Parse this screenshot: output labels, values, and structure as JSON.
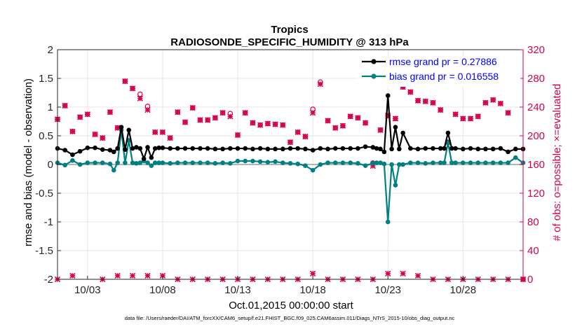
{
  "chart_data": {
    "type": "line",
    "title": "Tropics",
    "subtitle": "RADIOSONDE_SPECIFIC_HUMIDITY @ 313 hPa",
    "xlabel": "Oct.01,2015 00:00:00 start",
    "ylabel_left": "rmse and bias (model - observation)",
    "ylabel_right": "# of obs: o=possible; ×=evaluated",
    "footer": "data file: /Users/raeder/DAI/ATM_forcXX/CAM6_setup/f.e21.FHIST_BGC.f09_025.CAM6assim.011/Diags_NTrS_2015-10/obs_diag_output.nc",
    "x_range": [
      1,
      32
    ],
    "ylim_left": [
      -2,
      2
    ],
    "ylim_right": [
      0,
      320
    ],
    "xticks": [
      {
        "value": 3,
        "label": "10/03"
      },
      {
        "value": 8,
        "label": "10/08"
      },
      {
        "value": 13,
        "label": "10/13"
      },
      {
        "value": 18,
        "label": "10/18"
      },
      {
        "value": 23,
        "label": "10/23"
      },
      {
        "value": 28,
        "label": "10/28"
      }
    ],
    "yticks_left": [
      {
        "value": 2,
        "label": "2"
      },
      {
        "value": 1.5,
        "label": "1.5"
      },
      {
        "value": 1,
        "label": "1"
      },
      {
        "value": 0.5,
        "label": "0.5"
      },
      {
        "value": 0,
        "label": "0"
      },
      {
        "value": -0.5,
        "label": "-0.5"
      },
      {
        "value": -1,
        "label": "-1"
      },
      {
        "value": -1.5,
        "label": "-1.5"
      },
      {
        "value": -2,
        "label": "-2"
      }
    ],
    "yticks_right": [
      {
        "value": 320,
        "label": "320"
      },
      {
        "value": 280,
        "label": "280"
      },
      {
        "value": 240,
        "label": "240"
      },
      {
        "value": 200,
        "label": "200"
      },
      {
        "value": 160,
        "label": "160"
      },
      {
        "value": 120,
        "label": "120"
      },
      {
        "value": 80,
        "label": "80"
      },
      {
        "value": 40,
        "label": "40"
      },
      {
        "value": 0,
        "label": "0"
      }
    ],
    "grid": true,
    "legend_position": "top-right",
    "colors": {
      "rmse": "#000000",
      "bias": "#008080",
      "obs": "#d6004f",
      "zero_line": "#b4b4b4",
      "grid": "#e6e6e6",
      "legend_text": "#0000ff"
    },
    "series": [
      {
        "name": "rmse grand pr = 0.27886",
        "axis": "left",
        "color": "#000000",
        "marker": "circle",
        "x": [
          1.0,
          1.5,
          2.0,
          2.5,
          3.0,
          3.5,
          4.0,
          4.5,
          4.75,
          5.0,
          5.25,
          5.5,
          5.75,
          6.0,
          6.25,
          6.5,
          6.75,
          7.0,
          7.25,
          7.5,
          7.75,
          8.0,
          8.5,
          9.0,
          9.5,
          10.0,
          10.5,
          11.0,
          11.5,
          12.0,
          12.5,
          13.0,
          13.5,
          14.0,
          14.5,
          15.0,
          15.5,
          16.0,
          16.5,
          17.0,
          17.5,
          18.0,
          18.5,
          19.0,
          19.5,
          20.0,
          20.5,
          21.0,
          21.5,
          22.0,
          22.25,
          22.5,
          22.75,
          23.0,
          23.25,
          23.5,
          23.75,
          24.0,
          24.5,
          25.0,
          25.5,
          26.0,
          26.5,
          26.75,
          27.0,
          27.25,
          27.5,
          28.0,
          28.5,
          29.0,
          29.5,
          30.0,
          30.5,
          31.0,
          31.5,
          32.0
        ],
        "values": [
          0.28,
          0.25,
          0.17,
          0.23,
          0.29,
          0.29,
          0.26,
          0.25,
          0.22,
          0.28,
          0.65,
          0.26,
          0.6,
          0.28,
          0.3,
          0.28,
          0.1,
          0.3,
          0.12,
          0.28,
          0.29,
          0.29,
          0.28,
          0.28,
          0.28,
          0.28,
          0.28,
          0.28,
          0.27,
          0.27,
          0.28,
          0.28,
          0.28,
          0.27,
          0.28,
          0.27,
          0.27,
          0.27,
          0.28,
          0.28,
          0.27,
          0.25,
          0.28,
          0.27,
          0.28,
          0.28,
          0.28,
          0.28,
          0.31,
          0.3,
          0.28,
          0.27,
          0.22,
          1.2,
          0.27,
          0.65,
          0.27,
          0.55,
          0.28,
          0.27,
          0.28,
          0.28,
          0.28,
          0.28,
          0.55,
          0.28,
          0.28,
          0.27,
          0.28,
          0.27,
          0.27,
          0.27,
          0.28,
          0.22,
          0.27,
          0.27
        ]
      },
      {
        "name": "bias grand pr = 0.016558",
        "axis": "left",
        "color": "#008080",
        "marker": "circle",
        "x": [
          1.0,
          1.5,
          2.0,
          2.5,
          3.0,
          3.5,
          4.0,
          4.5,
          4.75,
          5.0,
          5.25,
          5.5,
          5.75,
          6.0,
          6.25,
          6.5,
          6.75,
          7.0,
          7.25,
          7.5,
          7.75,
          8.0,
          8.5,
          9.0,
          9.5,
          10.0,
          10.5,
          11.0,
          11.5,
          12.0,
          12.5,
          13.0,
          13.5,
          14.0,
          14.5,
          15.0,
          15.5,
          16.0,
          16.5,
          17.0,
          17.5,
          18.0,
          18.5,
          19.0,
          19.5,
          20.0,
          20.5,
          21.0,
          21.5,
          22.0,
          22.25,
          22.5,
          22.75,
          23.0,
          23.25,
          23.5,
          23.75,
          24.0,
          24.5,
          25.0,
          25.5,
          26.0,
          26.5,
          26.75,
          27.0,
          27.25,
          27.5,
          28.0,
          28.5,
          29.0,
          29.5,
          30.0,
          30.5,
          31.0,
          31.5,
          32.0
        ],
        "values": [
          0.03,
          -0.01,
          0.07,
          0.0,
          0.03,
          0.03,
          0.03,
          0.01,
          -0.1,
          0.03,
          0.6,
          0.03,
          0.42,
          0.03,
          0.02,
          0.03,
          0.06,
          0.03,
          -0.02,
          0.03,
          0.03,
          0.03,
          0.02,
          0.03,
          0.03,
          0.03,
          0.03,
          0.03,
          0.02,
          0.03,
          0.02,
          0.06,
          0.06,
          0.06,
          0.05,
          0.04,
          0.05,
          0.03,
          0.02,
          0.01,
          -0.02,
          -0.1,
          0.0,
          0.03,
          0.03,
          0.03,
          0.03,
          0.02,
          -0.02,
          0.02,
          0.03,
          0.03,
          0.01,
          -1.0,
          0.0,
          -0.36,
          0.0,
          0.0,
          0.03,
          0.03,
          0.02,
          0.03,
          0.03,
          0.03,
          0.38,
          0.03,
          0.03,
          0.03,
          0.03,
          0.03,
          0.03,
          0.03,
          0.03,
          0.03,
          0.12,
          0.03
        ]
      },
      {
        "name": "obs possible",
        "axis": "right",
        "color": "#d6004f",
        "marker": "o",
        "x": [
          1.0,
          1.5,
          2.0,
          2.5,
          3.0,
          3.5,
          4.0,
          4.5,
          5.0,
          5.5,
          6.0,
          6.5,
          7.0,
          7.5,
          8.0,
          8.5,
          9.0,
          9.5,
          10.0,
          10.5,
          11.0,
          11.5,
          12.0,
          12.5,
          13.0,
          13.5,
          14.0,
          14.5,
          15.0,
          15.5,
          16.0,
          16.5,
          17.0,
          17.5,
          18.0,
          18.5,
          19.0,
          19.5,
          20.0,
          20.5,
          21.0,
          21.5,
          22.0,
          22.5,
          23.0,
          23.5,
          24.0,
          24.5,
          25.0,
          25.5,
          26.0,
          26.5,
          27.0,
          27.5,
          28.0,
          28.5,
          29.0,
          29.5,
          30.0,
          30.5,
          31.0,
          31.5,
          32.0
        ],
        "values": [
          223,
          242,
          206,
          226,
          230,
          202,
          197,
          233,
          211,
          276,
          266,
          258,
          241,
          205,
          205,
          197,
          233,
          219,
          239,
          222,
          222,
          225,
          232,
          231,
          201,
          232,
          218,
          215,
          217,
          216,
          215,
          191,
          205,
          199,
          237,
          275,
          221,
          211,
          214,
          227,
          225,
          218,
          162,
          208,
          228,
          224,
          268,
          261,
          249,
          248,
          246,
          236,
          191,
          230,
          224,
          224,
          227,
          246,
          250,
          245,
          232,
          288,
          0
        ],
        "extra_x": [
          1,
          2,
          4,
          5,
          6,
          7,
          8,
          9,
          10,
          11,
          12,
          13,
          14,
          15,
          16,
          17,
          18,
          19,
          20,
          21,
          22,
          23,
          24,
          25,
          26,
          27,
          28,
          29,
          30,
          31,
          32
        ],
        "extra_values": [
          0,
          5,
          0,
          5,
          5,
          5,
          5,
          0,
          0,
          0,
          0,
          0,
          0,
          0,
          0,
          0,
          8,
          0,
          0,
          0,
          0,
          8,
          8,
          5,
          0,
          0,
          0,
          0,
          0,
          0,
          0
        ]
      },
      {
        "name": "obs evaluated",
        "axis": "right",
        "color": "#d6004f",
        "marker": "x",
        "x": [
          1.0,
          1.5,
          2.0,
          2.5,
          3.0,
          3.5,
          4.0,
          4.5,
          5.0,
          5.5,
          6.0,
          6.5,
          7.0,
          7.5,
          8.0,
          8.5,
          9.0,
          9.5,
          10.0,
          10.5,
          11.0,
          11.5,
          12.0,
          12.5,
          13.0,
          13.5,
          14.0,
          14.5,
          15.0,
          15.5,
          16.0,
          16.5,
          17.0,
          17.5,
          18.0,
          18.5,
          19.0,
          19.5,
          20.0,
          20.5,
          21.0,
          21.5,
          22.0,
          22.5,
          23.0,
          23.5,
          24.0,
          24.5,
          25.0,
          25.5,
          26.0,
          26.5,
          27.0,
          27.5,
          28.0,
          28.5,
          29.0,
          29.5,
          30.0,
          30.5,
          31.0,
          31.5,
          32.0
        ],
        "values": [
          223,
          242,
          206,
          226,
          230,
          202,
          197,
          233,
          211,
          276,
          266,
          252,
          236,
          205,
          205,
          197,
          233,
          219,
          239,
          222,
          222,
          225,
          232,
          227,
          201,
          232,
          218,
          215,
          217,
          216,
          215,
          191,
          205,
          199,
          232,
          272,
          221,
          211,
          214,
          227,
          225,
          218,
          158,
          208,
          228,
          224,
          268,
          261,
          249,
          248,
          246,
          236,
          191,
          230,
          224,
          224,
          227,
          246,
          250,
          245,
          232,
          288,
          0
        ]
      }
    ]
  },
  "legend": {
    "rmse_label": "rmse grand pr = 0.27886",
    "bias_label": "bias grand pr = 0.016558"
  }
}
